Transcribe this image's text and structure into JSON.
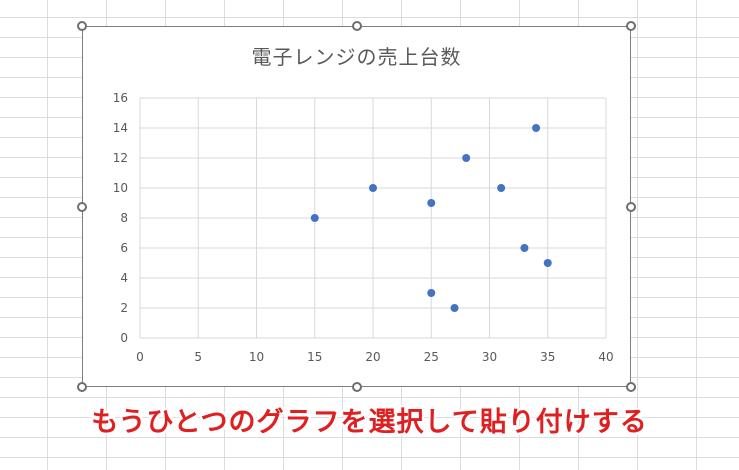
{
  "chart_data": {
    "type": "scatter",
    "title": "電子レンジの売上台数",
    "xlabel": "",
    "ylabel": "",
    "xlim": [
      0,
      40
    ],
    "ylim": [
      0,
      16
    ],
    "xticks": [
      0,
      5,
      10,
      15,
      20,
      25,
      30,
      35,
      40
    ],
    "yticks": [
      0,
      2,
      4,
      6,
      8,
      10,
      12,
      14,
      16
    ],
    "grid": true,
    "legend": "none",
    "marker_color": "#4472c4",
    "points": [
      {
        "x": 15,
        "y": 8
      },
      {
        "x": 20,
        "y": 10
      },
      {
        "x": 25,
        "y": 9
      },
      {
        "x": 28,
        "y": 12
      },
      {
        "x": 31,
        "y": 10
      },
      {
        "x": 34,
        "y": 14
      },
      {
        "x": 33,
        "y": 6
      },
      {
        "x": 35,
        "y": 5
      },
      {
        "x": 25,
        "y": 3
      },
      {
        "x": 27,
        "y": 2
      }
    ]
  },
  "caption": {
    "text": "もうひとつのグラフを選択して貼り付けする",
    "color": "#e02020"
  }
}
